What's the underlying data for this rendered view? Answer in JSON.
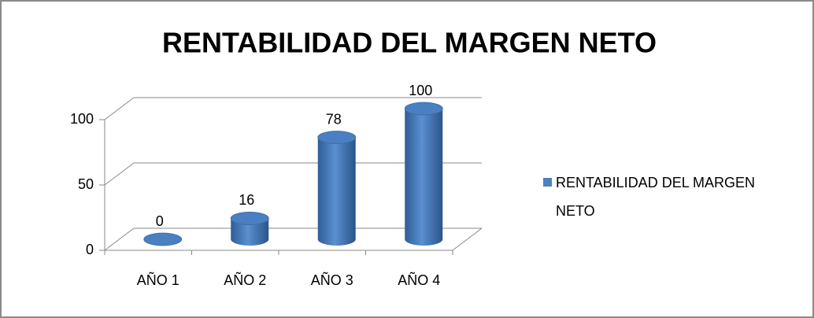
{
  "chart_data": {
    "type": "bar3d",
    "title": "RENTABILIDAD DEL MARGEN NETO",
    "categories": [
      "AÑO 1",
      "AÑO 2",
      "AÑO 3",
      "AÑO 4"
    ],
    "series": [
      {
        "name": "RENTABILIDAD DEL MARGEN NETO",
        "color": "#4f81bd",
        "values": [
          0,
          16,
          78,
          100
        ]
      }
    ],
    "ylim": [
      0,
      100
    ],
    "yticks": [
      0,
      50,
      100
    ],
    "grid": true,
    "legend": "right"
  }
}
